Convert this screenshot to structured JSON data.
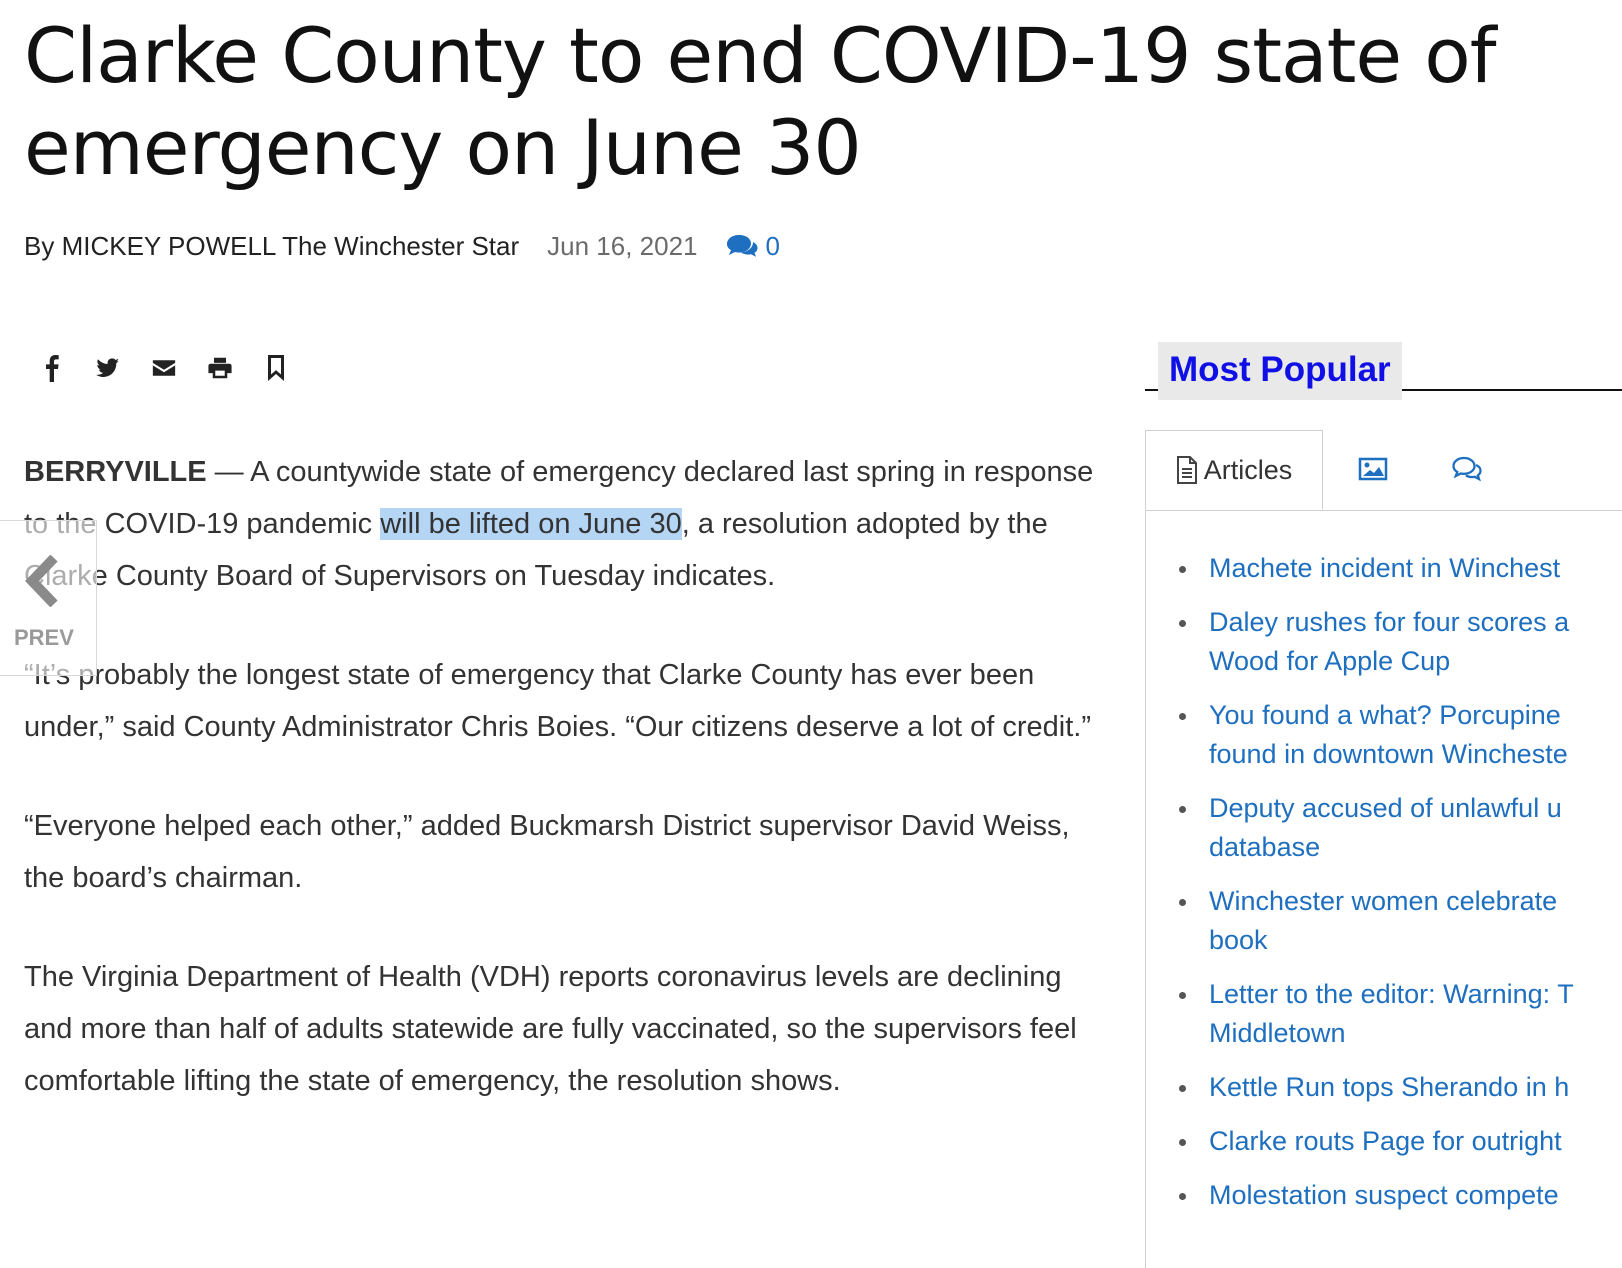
{
  "article": {
    "headline": "Clarke County to end COVID-19 state of emergency on June 30",
    "author": "By MICKEY POWELL The Winchester Star",
    "date": "Jun 16, 2021",
    "comment_count": "0",
    "dateline": "BERRYVILLE",
    "dateline_sep": " — ",
    "p1_before": "A countywide state of emergency declared last spring in response to the COVID-19 pandemic ",
    "p1_highlight": "will be lifted on June 30",
    "p1_after": ", a resolution adopted by the Clarke County Board of Supervisors on Tuesday indicates.",
    "p2": "“It’s probably the longest state of emergency that Clarke County has ever been under,” said County Administrator Chris Boies. “Our citizens deserve a lot of credit.”",
    "p3": "“Everyone helped each other,” added Buckmarsh District supervisor David Weiss, the board’s chairman.",
    "p4": "The Virginia Department of Health (VDH) reports coronavirus levels are declining and more than half of adults statewide are fully vaccinated, so the supervisors feel comfortable lifting the state of emergency, the resolution shows."
  },
  "share_icons": [
    "facebook-icon",
    "twitter-icon",
    "email-icon",
    "print-icon",
    "bookmark-icon"
  ],
  "nav": {
    "prev_label": "PREV"
  },
  "sidebar": {
    "title": "Most Popular",
    "tabs": [
      {
        "label": "Articles",
        "icon": "document-icon",
        "active": true
      },
      {
        "label": "",
        "icon": "image-icon",
        "active": false
      },
      {
        "label": "",
        "icon": "chat-icon",
        "active": false
      }
    ],
    "items": [
      {
        "line1": "Machete incident in Winchest",
        "line2": ""
      },
      {
        "line1": "Daley rushes for four scores a",
        "line2": "Wood for Apple Cup"
      },
      {
        "line1": "You found a what? Porcupine",
        "line2": "found in downtown Wincheste"
      },
      {
        "line1": "Deputy accused of unlawful u",
        "line2": "database"
      },
      {
        "line1": "Winchester women celebrate",
        "line2": "book"
      },
      {
        "line1": "Letter to the editor: Warning: T",
        "line2": "Middletown"
      },
      {
        "line1": "Kettle Run tops Sherando in h",
        "line2": ""
      },
      {
        "line1": "Clarke routs Page for outright",
        "line2": ""
      },
      {
        "line1": "Molestation suspect compete",
        "line2": ""
      }
    ]
  },
  "colors": {
    "link": "#1e6fbf",
    "most_popular": "#1010e6",
    "selection": "#b5d5f5"
  }
}
